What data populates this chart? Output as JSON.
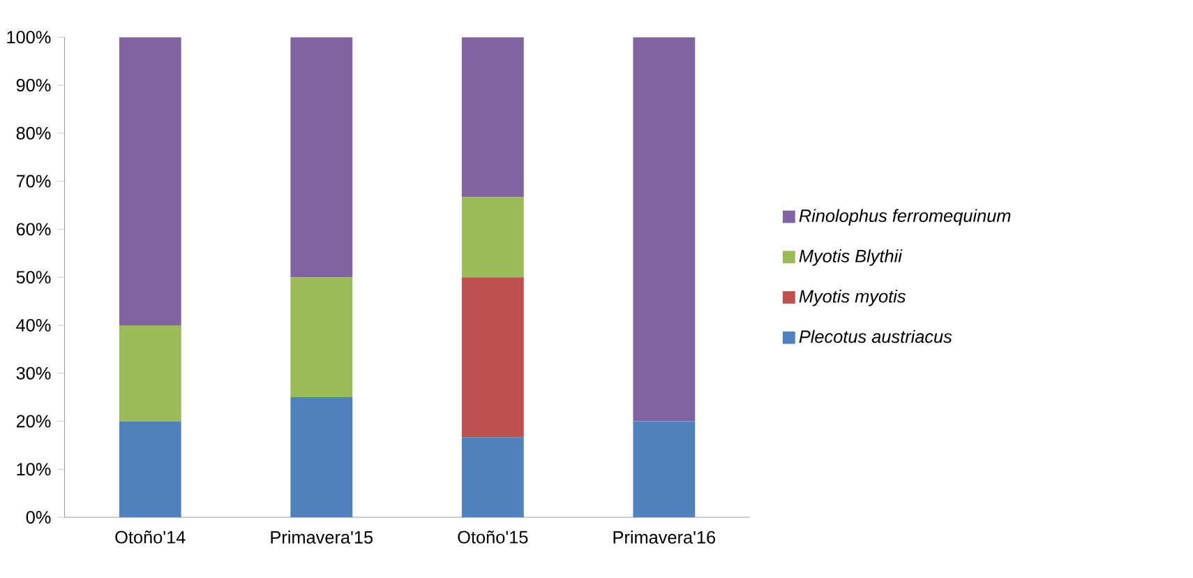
{
  "chart_data": {
    "type": "bar",
    "stacked": true,
    "categories": [
      "Otoño'14",
      "Primavera'15",
      "Otoño'15",
      "Primavera'16"
    ],
    "series": [
      {
        "name": "Plecotus austriacus",
        "color": "#4f81bd",
        "values": [
          20,
          25,
          16.7,
          20
        ]
      },
      {
        "name": "Myotis myotis",
        "color": "#c0504d",
        "values": [
          0,
          0,
          33.3,
          0
        ]
      },
      {
        "name": "Myotis Blythii",
        "color": "#9bbb59",
        "values": [
          20,
          25,
          16.7,
          0
        ]
      },
      {
        "name": "Rinolophus ferromequinum",
        "color": "#8064a2",
        "values": [
          60,
          50,
          33.3,
          80
        ]
      }
    ],
    "ylim": [
      0,
      100
    ],
    "yticks": [
      {
        "value": 0,
        "label": "0%"
      },
      {
        "value": 10,
        "label": "10%"
      },
      {
        "value": 20,
        "label": "20%"
      },
      {
        "value": 30,
        "label": "30%"
      },
      {
        "value": 40,
        "label": "40%"
      },
      {
        "value": 50,
        "label": "50%"
      },
      {
        "value": 60,
        "label": "60%"
      },
      {
        "value": 70,
        "label": "70%"
      },
      {
        "value": 80,
        "label": "80%"
      },
      {
        "value": 90,
        "label": "90%"
      },
      {
        "value": 100,
        "label": "100%"
      }
    ],
    "legend": "right"
  }
}
